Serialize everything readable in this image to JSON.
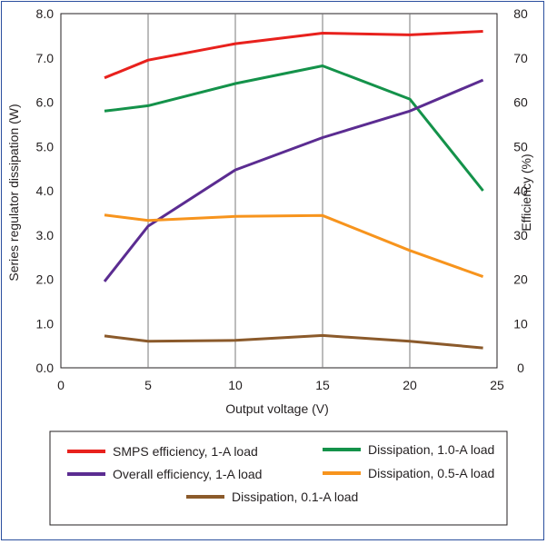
{
  "chart_data": {
    "type": "line",
    "xlabel": "Output voltage (V)",
    "ylabel_left": "Series regulator dissipation (W)",
    "ylabel_right": "Efficiency (%)",
    "xlim": [
      0,
      25
    ],
    "ylim_left": [
      0,
      8
    ],
    "ylim_right": [
      0,
      80
    ],
    "grid": "vertical",
    "x_ticks": [
      "0",
      "5",
      "10",
      "15",
      "20",
      "25"
    ],
    "y_left_ticks": [
      "0.0",
      "1.0",
      "2.0",
      "3.0",
      "4.0",
      "5.0",
      "6.0",
      "7.0",
      "8.0"
    ],
    "y_right_ticks": [
      "0",
      "10",
      "20",
      "30",
      "40",
      "50",
      "60",
      "70",
      "80"
    ],
    "legend_position": "bottom",
    "series": [
      {
        "name": "SMPS efficiency, 1-A load",
        "axis": "right",
        "color": "#e8211d",
        "x": [
          2.5,
          5,
          10,
          15,
          20,
          24.2
        ],
        "y": [
          65.5,
          69.5,
          73.2,
          75.6,
          75.2,
          76
        ]
      },
      {
        "name": "Dissipation, 1.0-A load",
        "axis": "left",
        "color": "#14924a",
        "x": [
          2.5,
          5,
          10,
          15,
          20,
          24.2
        ],
        "y": [
          5.8,
          5.92,
          6.42,
          6.82,
          6.07,
          4.0
        ]
      },
      {
        "name": "Overall efficiency, 1-A load",
        "axis": "right",
        "color": "#5b2c91",
        "x": [
          2.5,
          5,
          10,
          15,
          20,
          24.2
        ],
        "y": [
          19.5,
          32,
          44.7,
          52,
          58,
          65
        ]
      },
      {
        "name": "Dissipation, 0.5-A load",
        "axis": "left",
        "color": "#f7941d",
        "x": [
          2.5,
          5,
          10,
          15,
          20,
          24.2
        ],
        "y": [
          3.45,
          3.33,
          3.42,
          3.44,
          2.65,
          2.06
        ]
      },
      {
        "name": "Dissipation, 0.1-A load",
        "axis": "left",
        "color": "#8b5a2b",
        "x": [
          2.5,
          5,
          10,
          15,
          20,
          24.2
        ],
        "y": [
          0.72,
          0.6,
          0.62,
          0.73,
          0.6,
          0.45
        ]
      }
    ]
  }
}
